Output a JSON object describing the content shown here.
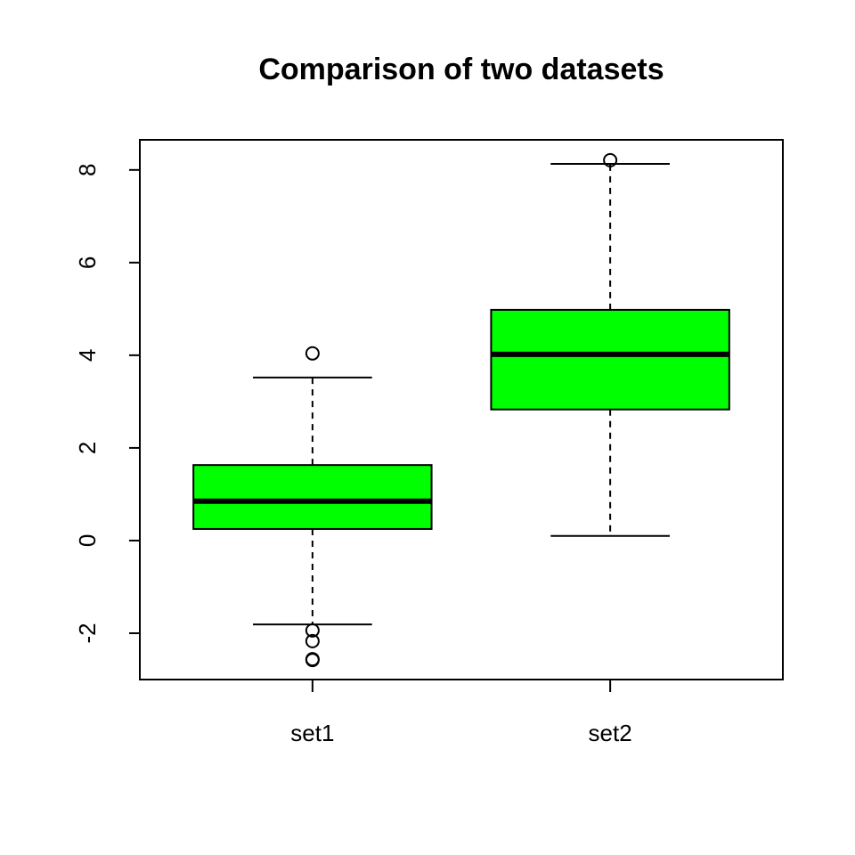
{
  "chart_data": {
    "type": "box",
    "title": "Comparison of two datasets",
    "categories": [
      "set1",
      "set2"
    ],
    "color": "#00ff00",
    "boxes": [
      {
        "whisker_low": -1.81,
        "q1": 0.25,
        "median": 0.85,
        "q3": 1.63,
        "whisker_high": 3.52,
        "outliers": [
          4.04,
          -1.94,
          -2.17,
          -2.56,
          -2.58
        ]
      },
      {
        "whisker_low": 0.1,
        "q1": 2.83,
        "median": 4.02,
        "q3": 4.98,
        "whisker_high": 8.13,
        "outliers": [
          8.21
        ]
      }
    ],
    "ylim": [
      -3,
      8.65
    ],
    "yticks": [
      -2,
      0,
      2,
      4,
      6,
      8
    ]
  }
}
